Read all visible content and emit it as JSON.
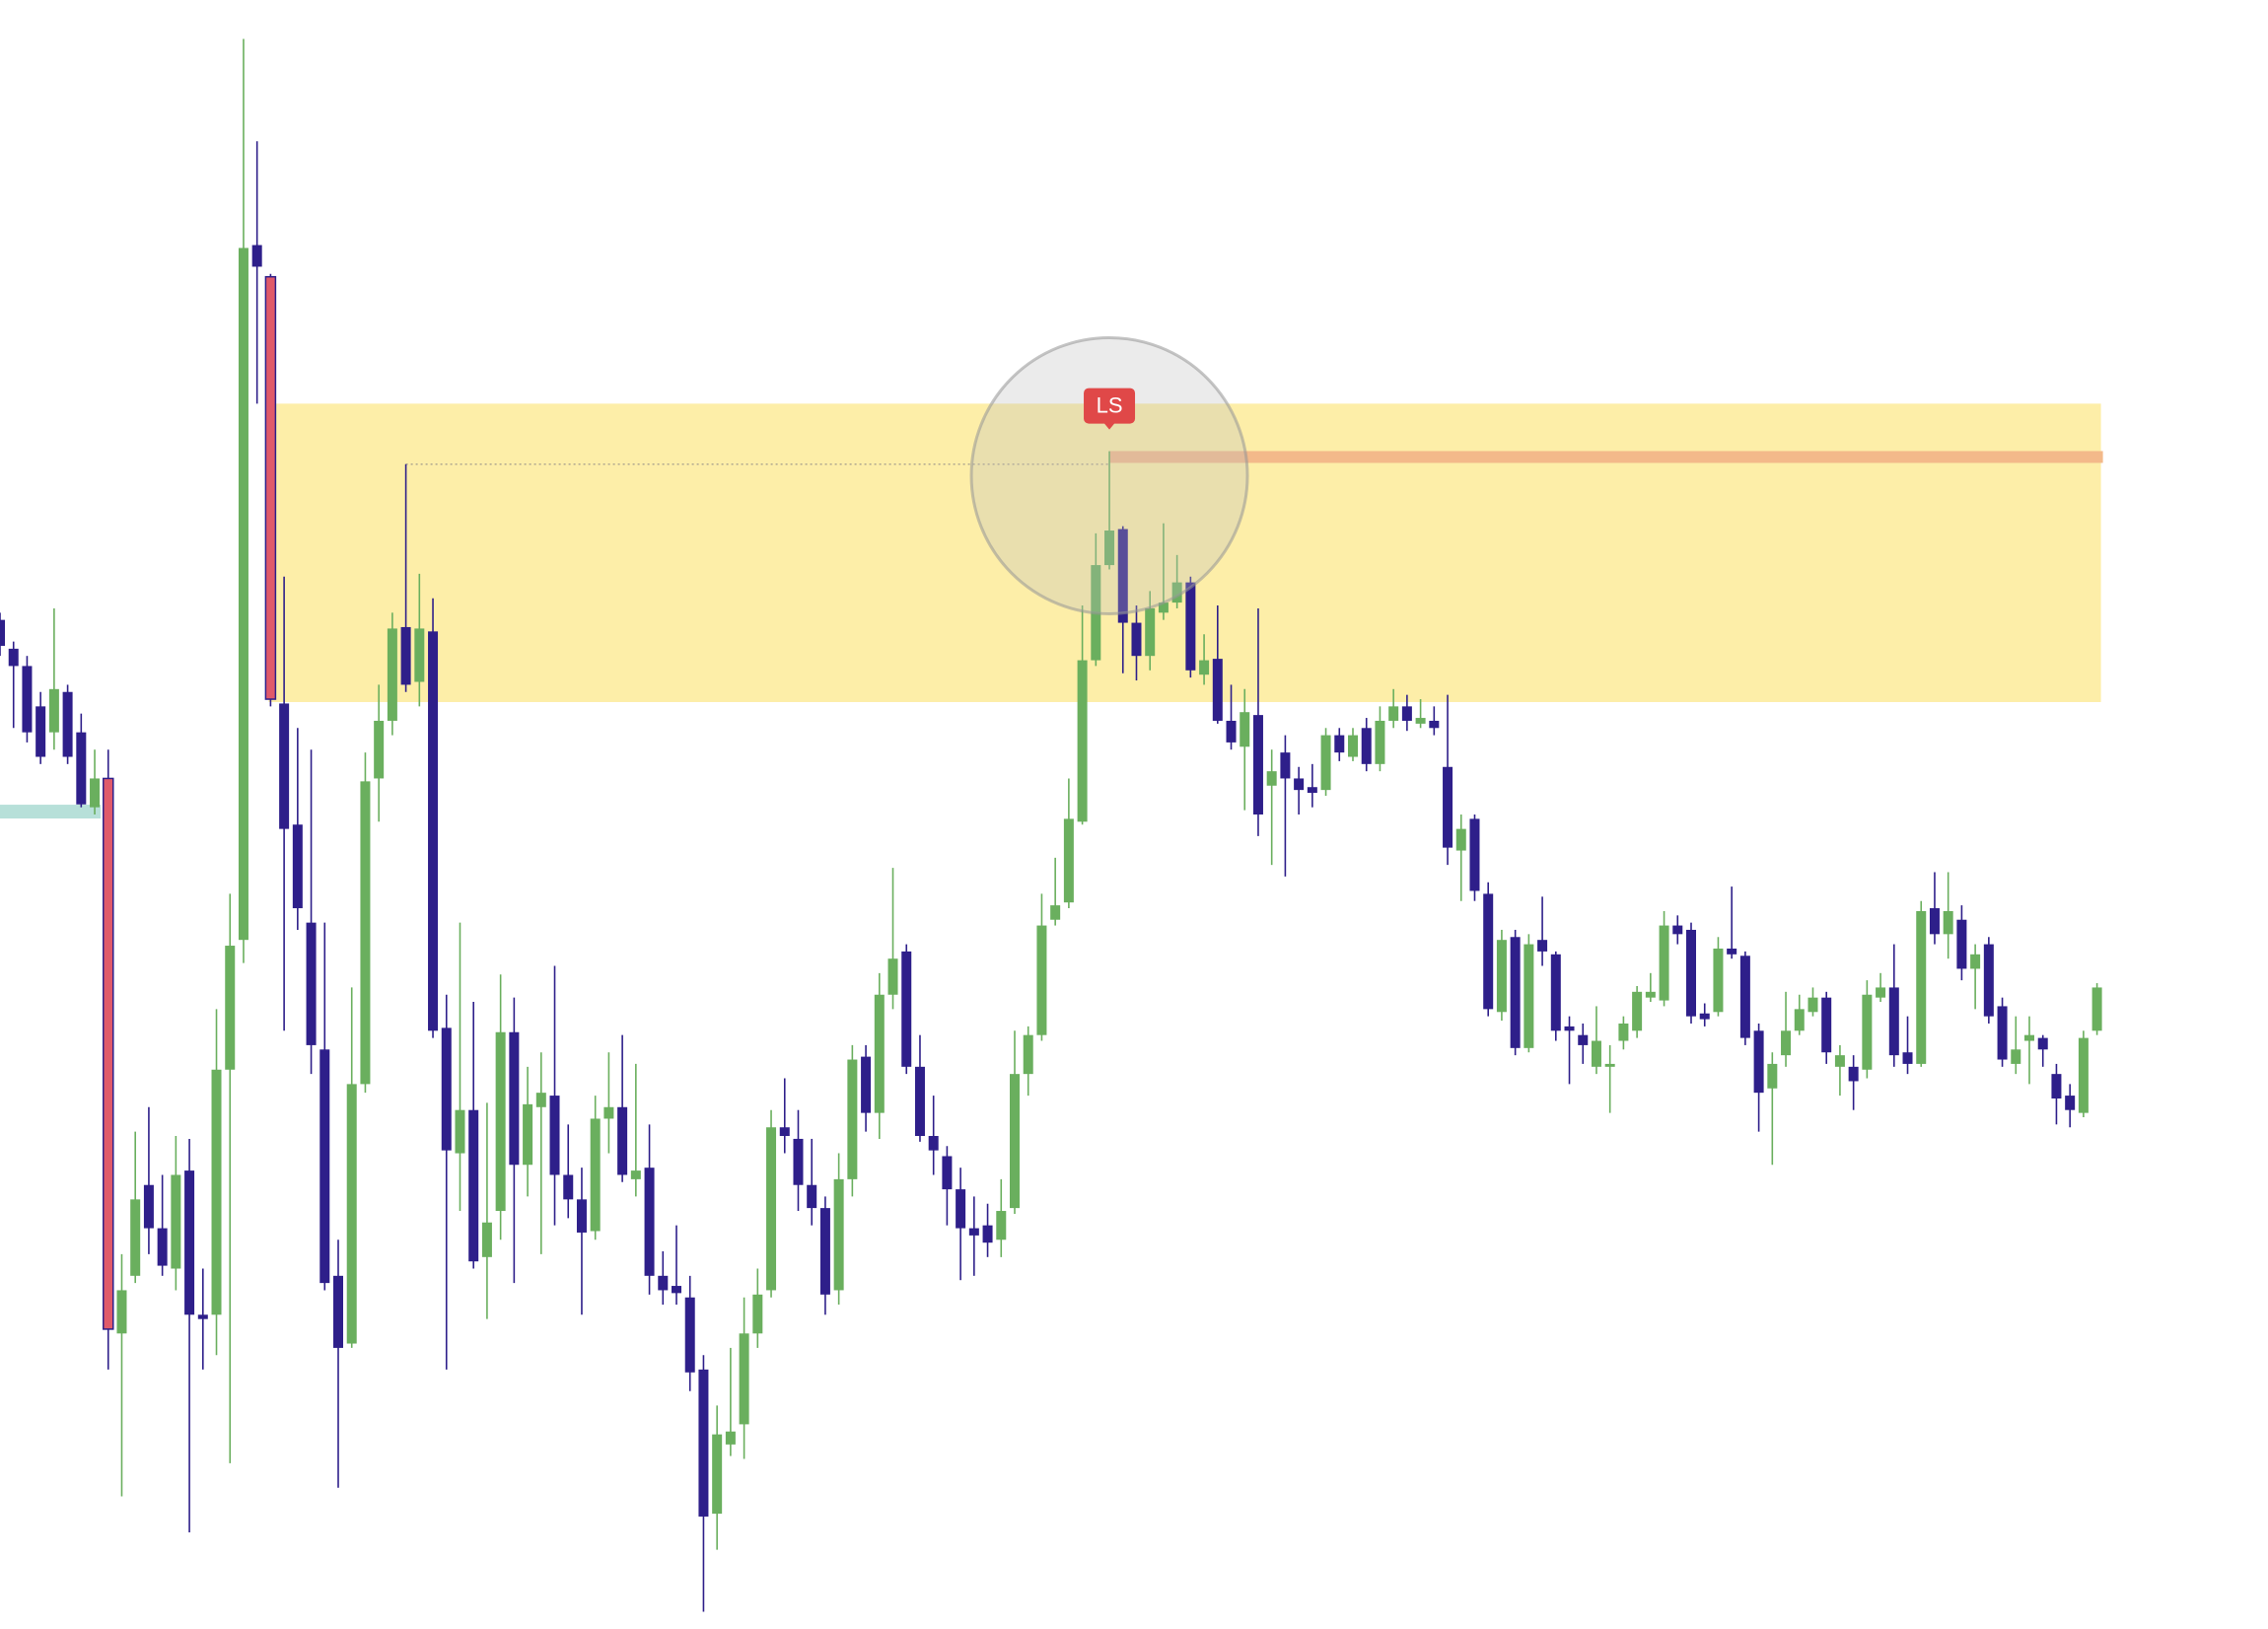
{
  "chart_data": {
    "type": "candlestick",
    "ylim": [
      0,
      1130
    ],
    "up_color": "#6aaf5e",
    "down_color": "#2e1f8a",
    "highlight_color": "#e05a6a",
    "highlighted": [
      8,
      20
    ],
    "open": [
      700,
      680,
      668,
      640,
      622,
      650,
      622,
      570,
      590,
      205,
      245,
      308,
      278,
      250,
      318,
      218,
      218,
      388,
      478,
      960,
      938,
      642,
      558,
      490,
      402,
      245,
      198,
      378,
      590,
      630,
      695,
      657,
      692,
      417,
      330,
      360,
      258,
      290,
      414,
      322,
      362,
      370,
      315,
      298,
      276,
      354,
      362,
      312,
      320,
      245,
      238,
      230,
      180,
      80,
      128,
      142,
      205,
      235,
      348,
      340,
      308,
      292,
      235,
      312,
      397,
      358,
      440,
      470,
      390,
      342,
      328,
      305,
      278,
      280,
      270,
      292,
      385,
      412,
      492,
      504,
      560,
      672,
      738,
      763,
      698,
      675,
      705,
      712,
      726,
      662,
      673,
      630,
      612,
      634,
      585,
      608,
      590,
      584,
      582,
      620,
      605,
      625,
      600,
      630,
      640,
      628,
      630,
      598,
      540,
      562,
      510,
      428,
      480,
      403,
      478,
      468,
      418,
      412,
      390,
      390,
      408,
      415,
      438,
      436,
      488,
      485,
      427,
      428,
      472,
      467,
      415,
      375,
      398,
      415,
      428,
      438,
      390,
      390,
      388,
      438,
      445,
      400,
      392,
      500,
      482,
      492,
      458,
      475,
      432,
      392,
      408,
      410,
      385,
      370,
      358,
      415
    ],
    "high": [
      705,
      685,
      675,
      650,
      708,
      655,
      635,
      610,
      610,
      260,
      345,
      362,
      315,
      342,
      340,
      250,
      430,
      510,
      1103,
      1032,
      940,
      730,
      625,
      610,
      490,
      270,
      445,
      608,
      655,
      705,
      808,
      732,
      715,
      440,
      490,
      435,
      365,
      454,
      438,
      390,
      400,
      460,
      350,
      320,
      370,
      400,
      412,
      392,
      350,
      262,
      280,
      245,
      190,
      155,
      195,
      230,
      250,
      360,
      382,
      360,
      340,
      300,
      330,
      405,
      405,
      455,
      528,
      475,
      412,
      370,
      335,
      320,
      300,
      295,
      312,
      415,
      418,
      510,
      535,
      590,
      710,
      760,
      817,
      765,
      710,
      720,
      767,
      745,
      730,
      690,
      710,
      655,
      652,
      708,
      610,
      620,
      598,
      600,
      625,
      625,
      625,
      632,
      640,
      652,
      648,
      645,
      640,
      648,
      565,
      565,
      518,
      485,
      485,
      482,
      508,
      470,
      425,
      420,
      432,
      405,
      425,
      446,
      455,
      498,
      495,
      490,
      434,
      480,
      515,
      470,
      420,
      400,
      442,
      440,
      445,
      442,
      405,
      398,
      450,
      455,
      475,
      425,
      505,
      525,
      525,
      502,
      475,
      480,
      438,
      425,
      425,
      412,
      392,
      378,
      415,
      448
    ],
    "low": [
      675,
      625,
      615,
      600,
      610,
      600,
      570,
      565,
      180,
      92,
      240,
      260,
      245,
      235,
      67,
      180,
      190,
      115,
      462,
      850,
      640,
      415,
      485,
      385,
      235,
      98,
      195,
      372,
      560,
      620,
      650,
      640,
      410,
      180,
      290,
      250,
      215,
      270,
      240,
      300,
      260,
      280,
      285,
      218,
      270,
      330,
      310,
      300,
      232,
      225,
      225,
      165,
      12,
      55,
      120,
      118,
      195,
      230,
      330,
      290,
      280,
      218,
      225,
      300,
      345,
      340,
      430,
      385,
      338,
      315,
      280,
      242,
      245,
      258,
      258,
      288,
      370,
      408,
      488,
      500,
      558,
      668,
      735,
      663,
      658,
      665,
      700,
      708,
      660,
      655,
      628,
      610,
      568,
      550,
      530,
      522,
      565,
      570,
      578,
      602,
      602,
      595,
      595,
      625,
      623,
      625,
      620,
      530,
      505,
      505,
      425,
      422,
      398,
      400,
      460,
      408,
      378,
      392,
      385,
      358,
      402,
      410,
      435,
      432,
      475,
      420,
      418,
      425,
      465,
      405,
      345,
      322,
      390,
      412,
      425,
      392,
      370,
      360,
      382,
      435,
      390,
      385,
      390,
      475,
      465,
      450,
      430,
      420,
      390,
      385,
      378,
      390,
      350,
      348,
      355,
      412
    ],
    "close": [
      682,
      668,
      622,
      605,
      652,
      605,
      572,
      590,
      208,
      235,
      298,
      278,
      252,
      315,
      218,
      215,
      388,
      474,
      958,
      945,
      645,
      555,
      500,
      405,
      240,
      195,
      378,
      588,
      630,
      694,
      655,
      694,
      415,
      332,
      360,
      255,
      282,
      414,
      322,
      364,
      372,
      315,
      298,
      275,
      354,
      362,
      315,
      318,
      245,
      235,
      233,
      178,
      78,
      135,
      137,
      205,
      232,
      348,
      342,
      308,
      292,
      232,
      312,
      395,
      358,
      440,
      465,
      390,
      342,
      332,
      305,
      278,
      273,
      268,
      290,
      385,
      412,
      488,
      502,
      562,
      672,
      738,
      762,
      698,
      675,
      708,
      712,
      726,
      665,
      672,
      630,
      615,
      636,
      565,
      595,
      590,
      582,
      580,
      620,
      608,
      620,
      600,
      630,
      640,
      630,
      632,
      625,
      542,
      555,
      512,
      430,
      478,
      403,
      475,
      470,
      415,
      415,
      405,
      408,
      392,
      420,
      442,
      442,
      488,
      482,
      425,
      423,
      472,
      468,
      410,
      372,
      392,
      415,
      430,
      438,
      400,
      398,
      380,
      440,
      445,
      398,
      392,
      498,
      482,
      498,
      458,
      468,
      425,
      395,
      402,
      412,
      402,
      368,
      360,
      410,
      445
    ],
    "zone": {
      "low": 643,
      "high": 850,
      "start": 20,
      "end": 155,
      "color": "#fdeea8"
    },
    "level": {
      "value": 813,
      "start": 82,
      "end": 155,
      "color": "#f3b98a"
    },
    "dotted_level": {
      "value": 808,
      "start": 30,
      "end": 82,
      "color": "#b0a890"
    },
    "band": {
      "value": 567,
      "start": 0,
      "end": 7,
      "color": "#b7e0d9"
    },
    "circle": {
      "index": 82,
      "value": 800
    },
    "marker": {
      "label": "LS",
      "index": 82,
      "color": "#e04848"
    }
  }
}
